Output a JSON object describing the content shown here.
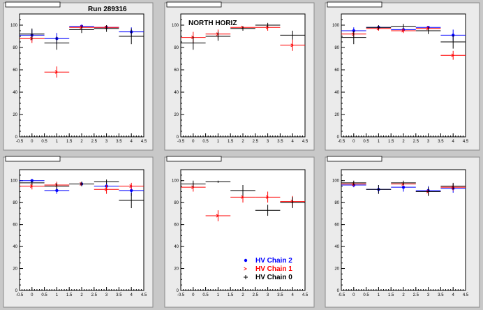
{
  "header": {
    "run_label": "Run 289316",
    "region_label": "NORTH HORIZ"
  },
  "colors": {
    "HV Chain 2": "#0000ff",
    "HV Chain 1": "#ff0000",
    "HV Chain 0": "#000000"
  },
  "legend": [
    {
      "name": "HV Chain 2",
      "marker": "dot",
      "color": "#0000ff"
    },
    {
      "name": "HV Chain 1",
      "marker": "arrow",
      "color": "#ff0000"
    },
    {
      "name": "HV Chain 0",
      "marker": "plus",
      "color": "#000000"
    }
  ],
  "chart_data": [
    {
      "type": "scatter",
      "title": "",
      "xlim": [
        -0.5,
        4.5
      ],
      "ylim": [
        0,
        110
      ],
      "xticks": [
        "-0.5",
        "0",
        "0.5",
        "1",
        "1.5",
        "2",
        "2.5",
        "3",
        "3.5",
        "4",
        "4.5"
      ],
      "yticks": [
        0,
        20,
        40,
        60,
        80,
        100
      ],
      "series": [
        {
          "name": "HV Chain 2",
          "x": [
            0,
            1,
            2,
            3,
            4
          ],
          "y": [
            91,
            88,
            99,
            98,
            94
          ],
          "yerr": [
            5,
            5,
            1,
            1,
            4
          ]
        },
        {
          "name": "HV Chain 1",
          "x": [
            0,
            1,
            2,
            3,
            4
          ],
          "y": [
            88,
            58,
            98,
            98,
            null
          ],
          "yerr": [
            4,
            5,
            2,
            2,
            0
          ]
        },
        {
          "name": "HV Chain 0",
          "x": [
            0,
            1,
            2,
            3,
            4
          ],
          "y": [
            92,
            84,
            96,
            97,
            90
          ],
          "yerr": [
            5,
            6,
            3,
            3,
            7
          ]
        }
      ]
    },
    {
      "type": "scatter",
      "title": "",
      "xlim": [
        -0.5,
        4.5
      ],
      "ylim": [
        0,
        110
      ],
      "xticks": [
        "-0.5",
        "0",
        "0.5",
        "1",
        "1.5",
        "2",
        "2.5",
        "3",
        "3.5",
        "4",
        "4.5"
      ],
      "yticks": [
        0,
        20,
        40,
        60,
        80,
        100
      ],
      "series": [
        {
          "name": "HV Chain 2",
          "x": [
            0,
            1,
            2,
            3,
            4
          ],
          "y": [
            null,
            null,
            null,
            null,
            null
          ],
          "yerr": [
            0,
            0,
            0,
            0,
            0
          ]
        },
        {
          "name": "HV Chain 1",
          "x": [
            0,
            1,
            2,
            3,
            4
          ],
          "y": [
            89,
            92,
            98,
            98,
            82
          ],
          "yerr": [
            5,
            4,
            1,
            3,
            5
          ]
        },
        {
          "name": "HV Chain 0",
          "x": [
            0,
            1,
            2,
            3,
            4
          ],
          "y": [
            84,
            90,
            97,
            100,
            91
          ],
          "yerr": [
            6,
            4,
            2,
            2,
            4
          ]
        }
      ]
    },
    {
      "type": "scatter",
      "title": "",
      "xlim": [
        -0.5,
        4.5
      ],
      "ylim": [
        0,
        110
      ],
      "xticks": [
        "-0.5",
        "0",
        "0.5",
        "1",
        "1.5",
        "2",
        "2.5",
        "3",
        "3.5",
        "4",
        "4.5"
      ],
      "yticks": [
        0,
        20,
        40,
        60,
        80,
        100
      ],
      "series": [
        {
          "name": "HV Chain 2",
          "x": [
            0,
            1,
            2,
            3,
            4
          ],
          "y": [
            95,
            98,
            96,
            98,
            91
          ],
          "yerr": [
            3,
            1,
            2,
            1,
            5
          ]
        },
        {
          "name": "HV Chain 1",
          "x": [
            0,
            1,
            2,
            3,
            4
          ],
          "y": [
            92,
            97,
            95,
            97,
            73
          ],
          "yerr": [
            3,
            2,
            2,
            2,
            4
          ]
        },
        {
          "name": "HV Chain 0",
          "x": [
            0,
            1,
            2,
            3,
            4
          ],
          "y": [
            89,
            98,
            99,
            95,
            85
          ],
          "yerr": [
            6,
            2,
            2,
            3,
            6
          ]
        }
      ]
    },
    {
      "type": "scatter",
      "title": "",
      "xlim": [
        -0.5,
        4.5
      ],
      "ylim": [
        0,
        110
      ],
      "xticks": [
        "-0.5",
        "0",
        "0.5",
        "1",
        "1.5",
        "2",
        "2.5",
        "3",
        "3.5",
        "4",
        "4.5"
      ],
      "yticks": [
        0,
        20,
        40,
        60,
        80,
        100
      ],
      "series": [
        {
          "name": "HV Chain 2",
          "x": [
            0,
            1,
            2,
            3,
            4
          ],
          "y": [
            100,
            91,
            97,
            95,
            91
          ],
          "yerr": [
            1,
            3,
            2,
            3,
            5
          ]
        },
        {
          "name": "HV Chain 1",
          "x": [
            0,
            1,
            2,
            3,
            4
          ],
          "y": [
            95,
            96,
            97,
            92,
            95
          ],
          "yerr": [
            3,
            3,
            2,
            4,
            3
          ]
        },
        {
          "name": "HV Chain 0",
          "x": [
            0,
            1,
            2,
            3,
            4
          ],
          "y": [
            98,
            95,
            97,
            99,
            82
          ],
          "yerr": [
            2,
            3,
            2,
            2,
            7
          ]
        }
      ]
    },
    {
      "type": "scatter",
      "title": "",
      "xlim": [
        -0.5,
        4.5
      ],
      "ylim": [
        0,
        110
      ],
      "xticks": [
        "-0.5",
        "0",
        "0.5",
        "1",
        "1.5",
        "2",
        "2.5",
        "3",
        "3.5",
        "4",
        "4.5"
      ],
      "yticks": [
        0,
        20,
        40,
        60,
        80,
        100
      ],
      "series": [
        {
          "name": "HV Chain 2",
          "x": [
            0,
            1,
            2,
            3,
            4
          ],
          "y": [
            null,
            null,
            null,
            null,
            null
          ],
          "yerr": [
            0,
            0,
            0,
            0,
            0
          ]
        },
        {
          "name": "HV Chain 1",
          "x": [
            0,
            1,
            2,
            3,
            4
          ],
          "y": [
            94,
            68,
            85,
            85,
            81
          ],
          "yerr": [
            4,
            5,
            5,
            5,
            5
          ]
        },
        {
          "name": "HV Chain 0",
          "x": [
            0,
            1,
            2,
            3,
            4
          ],
          "y": [
            97,
            99,
            91,
            73,
            80
          ],
          "yerr": [
            3,
            1,
            5,
            5,
            5
          ]
        }
      ]
    },
    {
      "type": "scatter",
      "title": "",
      "xlim": [
        -0.5,
        4.5
      ],
      "ylim": [
        0,
        110
      ],
      "xticks": [
        "-0.5",
        "0",
        "0.5",
        "1",
        "1.5",
        "2",
        "2.5",
        "3",
        "3.5",
        "4",
        "4.5"
      ],
      "yticks": [
        0,
        20,
        40,
        60,
        80,
        100
      ],
      "series": [
        {
          "name": "HV Chain 2",
          "x": [
            0,
            1,
            2,
            3,
            4
          ],
          "y": [
            96,
            92,
            94,
            91,
            93
          ],
          "yerr": [
            2,
            4,
            4,
            4,
            4
          ]
        },
        {
          "name": "HV Chain 1",
          "x": [
            0,
            1,
            2,
            3,
            4
          ],
          "y": [
            97,
            null,
            97,
            90,
            94
          ],
          "yerr": [
            2,
            0,
            2,
            3,
            3
          ]
        },
        {
          "name": "HV Chain 0",
          "x": [
            0,
            1,
            2,
            3,
            4
          ],
          "y": [
            98,
            92,
            98,
            90,
            95
          ],
          "yerr": [
            2,
            4,
            2,
            4,
            3
          ]
        }
      ]
    }
  ]
}
